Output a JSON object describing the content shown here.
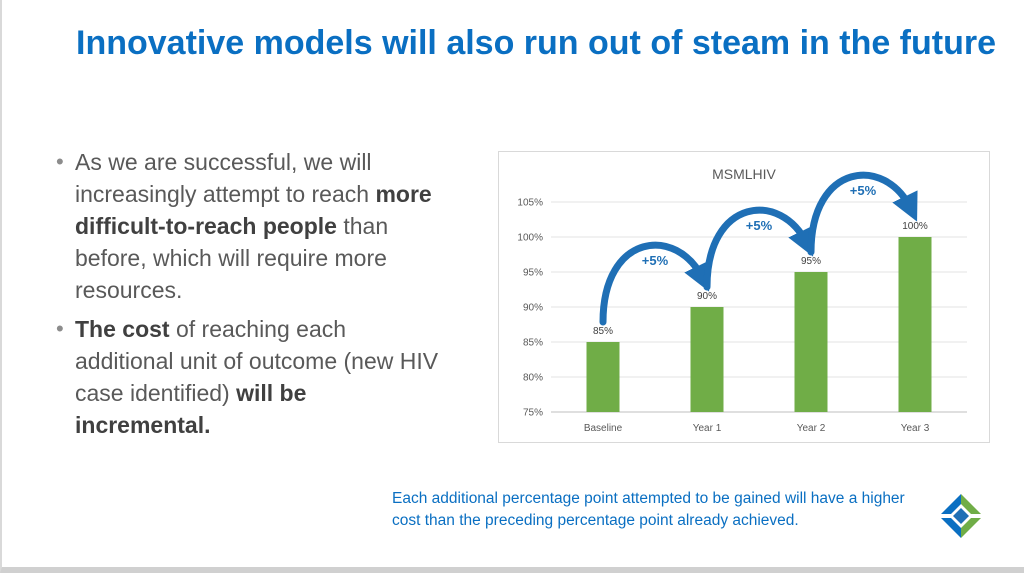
{
  "slide": {
    "title": "Innovative models will also run out of steam in the future",
    "bullets": [
      {
        "pre": "As we are successful, we will increasingly attempt to reach ",
        "bold": "more difficult-to-reach people",
        "post": " than before, which will require more resources."
      },
      {
        "pre": "",
        "bold": "The cost",
        "post": " of reaching each additional unit of outcome (new HIV case identified) ",
        "bold2": "will be incremental."
      }
    ],
    "footnote": "Each additional percentage point attempted to be gained will have a higher cost than the preceding percentage point already achieved."
  },
  "colors": {
    "title": "#0a6fc2",
    "bar": "#70ad47",
    "arrow": "#1f6fb5",
    "text": "#595959"
  },
  "chart_data": {
    "type": "bar",
    "title": "MSMLHIV",
    "categories": [
      "Baseline",
      "Year 1",
      "Year 2",
      "Year 3"
    ],
    "values": [
      85,
      90,
      95,
      100
    ],
    "value_labels": [
      "85%",
      "90%",
      "95%",
      "100%"
    ],
    "ylim": [
      75,
      105
    ],
    "yticks": [
      75,
      80,
      85,
      90,
      95,
      100,
      105
    ],
    "ytick_labels": [
      "75%",
      "80%",
      "85%",
      "90%",
      "95%",
      "100%",
      "105%"
    ],
    "grid": true,
    "legend": "none",
    "annotations": [
      {
        "from": 0,
        "to": 1,
        "label": "+5%"
      },
      {
        "from": 1,
        "to": 2,
        "label": "+5%"
      },
      {
        "from": 2,
        "to": 3,
        "label": "+5%"
      }
    ]
  }
}
